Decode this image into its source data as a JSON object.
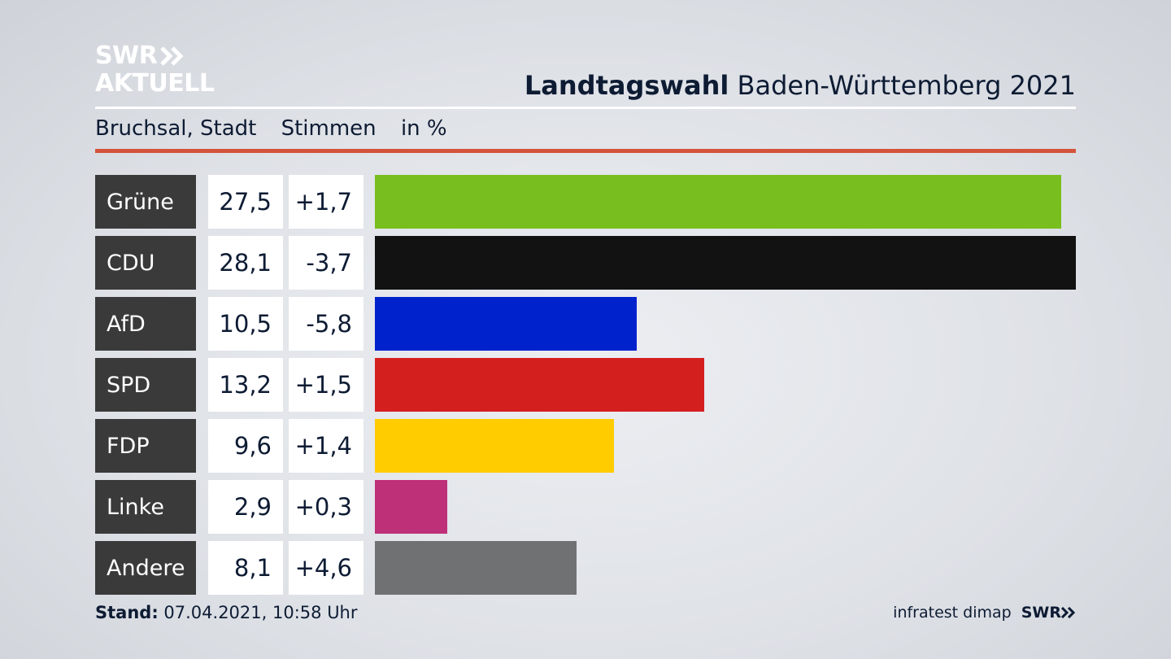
{
  "logo": {
    "line1": "SWR",
    "line2": "AKTUELL"
  },
  "header": {
    "title_bold": "Landtagswahl",
    "title_rest": "Baden-Württemberg 2021"
  },
  "subheader": {
    "place": "Bruchsal, Stadt",
    "measure": "Stimmen",
    "unit": "in %"
  },
  "chart_data": {
    "type": "bar",
    "categories": [
      "Grüne",
      "CDU",
      "AfD",
      "SPD",
      "FDP",
      "Linke",
      "Andere"
    ],
    "values": [
      27.5,
      28.1,
      10.5,
      13.2,
      9.6,
      2.9,
      8.1
    ],
    "value_labels": [
      "27,5",
      "28,1",
      "10,5",
      "13,2",
      "9,6",
      "2,9",
      "8,1"
    ],
    "diff_labels": [
      "+1,7",
      "-3,7",
      "-5,8",
      "+1,5",
      "+1,4",
      "+0,3",
      "+4,6"
    ],
    "colors": [
      "#78be1e",
      "#121212",
      "#0022cc",
      "#d41f1f",
      "#ffcc00",
      "#be3078",
      "#707173"
    ],
    "orientation": "horizontal"
  },
  "footer": {
    "stand_label": "Stand:",
    "stand_value": "07.04.2021, 10:58 Uhr",
    "source": "infratest dimap",
    "brand": "SWR"
  }
}
